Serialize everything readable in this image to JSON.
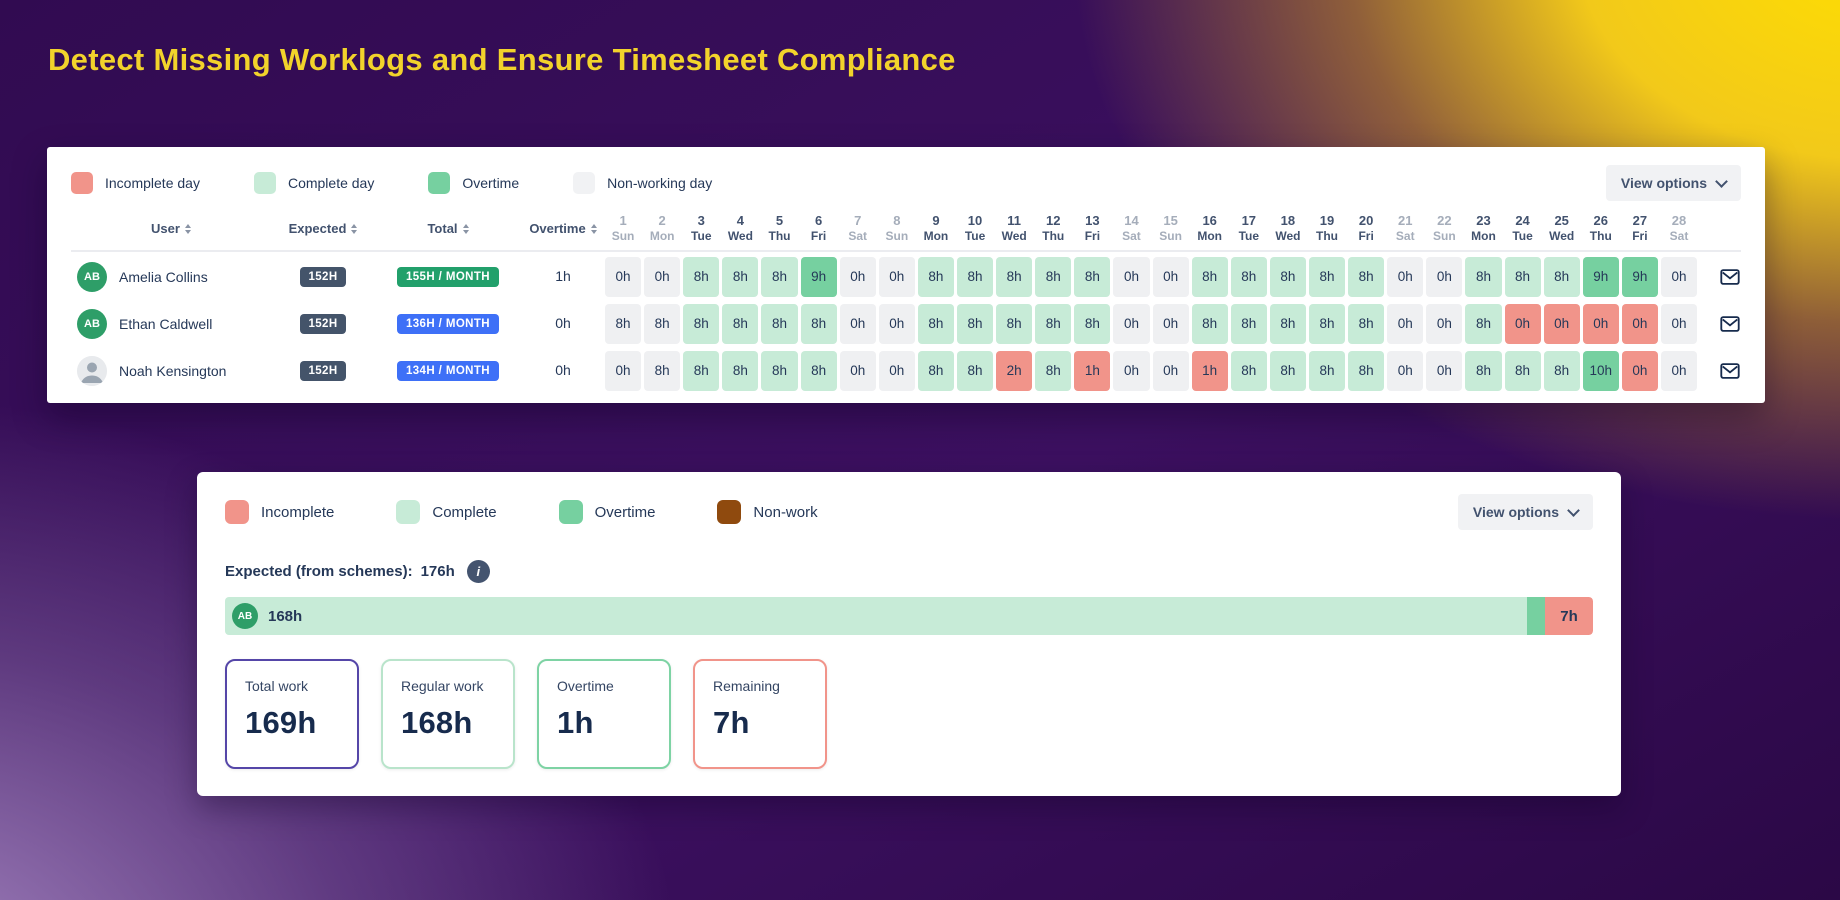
{
  "page": {
    "title": "Detect Missing Worklogs and Ensure Timesheet Compliance"
  },
  "timesheet_card": {
    "legend": [
      {
        "label": "Incomplete day",
        "color": "#f1948a"
      },
      {
        "label": "Complete day",
        "color": "#c7ebd7"
      },
      {
        "label": "Overtime",
        "color": "#76d0a0"
      },
      {
        "label": "Non-working day",
        "color": "#f1f2f4"
      }
    ],
    "view_options_label": "View options",
    "columns": {
      "user": "User",
      "expected": "Expected",
      "total": "Total",
      "overtime": "Overtime"
    },
    "days": [
      {
        "num": "1",
        "dow": "Sun",
        "tone": "muted"
      },
      {
        "num": "2",
        "dow": "Mon",
        "tone": "muted"
      },
      {
        "num": "3",
        "dow": "Tue",
        "tone": "normal"
      },
      {
        "num": "4",
        "dow": "Wed",
        "tone": "normal"
      },
      {
        "num": "5",
        "dow": "Thu",
        "tone": "normal"
      },
      {
        "num": "6",
        "dow": "Fri",
        "tone": "normal"
      },
      {
        "num": "7",
        "dow": "Sat",
        "tone": "muted"
      },
      {
        "num": "8",
        "dow": "Sun",
        "tone": "muted"
      },
      {
        "num": "9",
        "dow": "Mon",
        "tone": "normal"
      },
      {
        "num": "10",
        "dow": "Tue",
        "tone": "normal"
      },
      {
        "num": "11",
        "dow": "Wed",
        "tone": "normal"
      },
      {
        "num": "12",
        "dow": "Thu",
        "tone": "normal"
      },
      {
        "num": "13",
        "dow": "Fri",
        "tone": "normal"
      },
      {
        "num": "14",
        "dow": "Sat",
        "tone": "muted"
      },
      {
        "num": "15",
        "dow": "Sun",
        "tone": "muted"
      },
      {
        "num": "16",
        "dow": "Mon",
        "tone": "normal"
      },
      {
        "num": "17",
        "dow": "Tue",
        "tone": "normal"
      },
      {
        "num": "18",
        "dow": "Wed",
        "tone": "normal"
      },
      {
        "num": "19",
        "dow": "Thu",
        "tone": "normal"
      },
      {
        "num": "20",
        "dow": "Fri",
        "tone": "normal"
      },
      {
        "num": "21",
        "dow": "Sat",
        "tone": "muted"
      },
      {
        "num": "22",
        "dow": "Sun",
        "tone": "muted"
      },
      {
        "num": "23",
        "dow": "Mon",
        "tone": "normal"
      },
      {
        "num": "24",
        "dow": "Tue",
        "tone": "normal"
      },
      {
        "num": "25",
        "dow": "Wed",
        "tone": "normal"
      },
      {
        "num": "26",
        "dow": "Thu",
        "tone": "normal"
      },
      {
        "num": "27",
        "dow": "Fri",
        "tone": "normal"
      },
      {
        "num": "28",
        "dow": "Sat",
        "tone": "muted"
      }
    ],
    "rows": [
      {
        "user": "Amelia Collins",
        "avatar": "AB",
        "avatar_type": "initials",
        "expected": "152H",
        "total": "155H / MONTH",
        "total_color": "green",
        "overtime": "1h",
        "cells": [
          {
            "value": "0h",
            "type": "nonwork"
          },
          {
            "value": "0h",
            "type": "nonwork"
          },
          {
            "value": "8h",
            "type": "complete"
          },
          {
            "value": "8h",
            "type": "complete"
          },
          {
            "value": "8h",
            "type": "complete"
          },
          {
            "value": "9h",
            "type": "overtime"
          },
          {
            "value": "0h",
            "type": "nonwork"
          },
          {
            "value": "0h",
            "type": "nonwork"
          },
          {
            "value": "8h",
            "type": "complete"
          },
          {
            "value": "8h",
            "type": "complete"
          },
          {
            "value": "8h",
            "type": "complete"
          },
          {
            "value": "8h",
            "type": "complete"
          },
          {
            "value": "8h",
            "type": "complete"
          },
          {
            "value": "0h",
            "type": "nonwork"
          },
          {
            "value": "0h",
            "type": "nonwork"
          },
          {
            "value": "8h",
            "type": "complete"
          },
          {
            "value": "8h",
            "type": "complete"
          },
          {
            "value": "8h",
            "type": "complete"
          },
          {
            "value": "8h",
            "type": "complete"
          },
          {
            "value": "8h",
            "type": "complete"
          },
          {
            "value": "0h",
            "type": "nonwork"
          },
          {
            "value": "0h",
            "type": "nonwork"
          },
          {
            "value": "8h",
            "type": "complete"
          },
          {
            "value": "8h",
            "type": "complete"
          },
          {
            "value": "8h",
            "type": "complete"
          },
          {
            "value": "9h",
            "type": "overtime"
          },
          {
            "value": "9h",
            "type": "overtime"
          },
          {
            "value": "0h",
            "type": "nonwork"
          }
        ]
      },
      {
        "user": "Ethan Caldwell",
        "avatar": "AB",
        "avatar_type": "initials",
        "expected": "152H",
        "total": "136H / MONTH",
        "total_color": "blue",
        "overtime": "0h",
        "cells": [
          {
            "value": "8h",
            "type": "nonwork"
          },
          {
            "value": "8h",
            "type": "nonwork"
          },
          {
            "value": "8h",
            "type": "complete"
          },
          {
            "value": "8h",
            "type": "complete"
          },
          {
            "value": "8h",
            "type": "complete"
          },
          {
            "value": "8h",
            "type": "complete"
          },
          {
            "value": "0h",
            "type": "nonwork"
          },
          {
            "value": "0h",
            "type": "nonwork"
          },
          {
            "value": "8h",
            "type": "complete"
          },
          {
            "value": "8h",
            "type": "complete"
          },
          {
            "value": "8h",
            "type": "complete"
          },
          {
            "value": "8h",
            "type": "complete"
          },
          {
            "value": "8h",
            "type": "complete"
          },
          {
            "value": "0h",
            "type": "nonwork"
          },
          {
            "value": "0h",
            "type": "nonwork"
          },
          {
            "value": "8h",
            "type": "complete"
          },
          {
            "value": "8h",
            "type": "complete"
          },
          {
            "value": "8h",
            "type": "complete"
          },
          {
            "value": "8h",
            "type": "complete"
          },
          {
            "value": "8h",
            "type": "complete"
          },
          {
            "value": "0h",
            "type": "nonwork"
          },
          {
            "value": "0h",
            "type": "nonwork"
          },
          {
            "value": "8h",
            "type": "complete"
          },
          {
            "value": "0h",
            "type": "incomplete"
          },
          {
            "value": "0h",
            "type": "incomplete"
          },
          {
            "value": "0h",
            "type": "incomplete"
          },
          {
            "value": "0h",
            "type": "incomplete"
          },
          {
            "value": "0h",
            "type": "nonwork"
          }
        ]
      },
      {
        "user": "Noah Kensington",
        "avatar": "",
        "avatar_type": "photo",
        "expected": "152H",
        "total": "134H / MONTH",
        "total_color": "blue",
        "overtime": "0h",
        "cells": [
          {
            "value": "0h",
            "type": "nonwork"
          },
          {
            "value": "8h",
            "type": "nonwork"
          },
          {
            "value": "8h",
            "type": "complete"
          },
          {
            "value": "8h",
            "type": "complete"
          },
          {
            "value": "8h",
            "type": "complete"
          },
          {
            "value": "8h",
            "type": "complete"
          },
          {
            "value": "0h",
            "type": "nonwork"
          },
          {
            "value": "0h",
            "type": "nonwork"
          },
          {
            "value": "8h",
            "type": "complete"
          },
          {
            "value": "8h",
            "type": "complete"
          },
          {
            "value": "2h",
            "type": "incomplete"
          },
          {
            "value": "8h",
            "type": "complete"
          },
          {
            "value": "1h",
            "type": "incomplete"
          },
          {
            "value": "0h",
            "type": "nonwork"
          },
          {
            "value": "0h",
            "type": "nonwork"
          },
          {
            "value": "1h",
            "type": "incomplete"
          },
          {
            "value": "8h",
            "type": "complete"
          },
          {
            "value": "8h",
            "type": "complete"
          },
          {
            "value": "8h",
            "type": "complete"
          },
          {
            "value": "8h",
            "type": "complete"
          },
          {
            "value": "0h",
            "type": "nonwork"
          },
          {
            "value": "0h",
            "type": "nonwork"
          },
          {
            "value": "8h",
            "type": "complete"
          },
          {
            "value": "8h",
            "type": "complete"
          },
          {
            "value": "8h",
            "type": "complete"
          },
          {
            "value": "10h",
            "type": "overtime"
          },
          {
            "value": "0h",
            "type": "incomplete"
          },
          {
            "value": "0h",
            "type": "nonwork"
          }
        ]
      }
    ]
  },
  "summary_card": {
    "legend": [
      {
        "label": "Incomplete",
        "color": "#f1948a"
      },
      {
        "label": "Complete",
        "color": "#c7ebd7"
      },
      {
        "label": "Overtime",
        "color": "#76d0a0"
      },
      {
        "label": "Non-work",
        "color": "#8f4a0e"
      }
    ],
    "view_options_label": "View options",
    "expected_label": "Expected (from schemes):",
    "expected_value": "176h",
    "info_icon_glyph": "i",
    "bar": {
      "user_initials": "AB",
      "worked_label": "168h",
      "remaining_label": "7h",
      "regular_pct": 95.2,
      "overtime_pct": 1.3,
      "remaining_pct": 3.5
    },
    "stats": [
      {
        "label": "Total work",
        "value": "169h",
        "tone": "total"
      },
      {
        "label": "Regular work",
        "value": "168h",
        "tone": "regular"
      },
      {
        "label": "Overtime",
        "value": "1h",
        "tone": "overtime"
      },
      {
        "label": "Remaining",
        "value": "7h",
        "tone": "remaining"
      }
    ]
  }
}
